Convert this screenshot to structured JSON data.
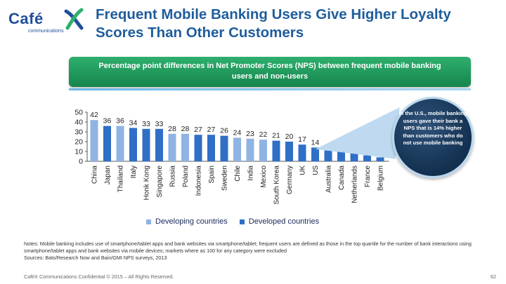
{
  "logo": {
    "text": "Café",
    "sub": "communications"
  },
  "title": "Frequent Mobile Banking Users Give Higher Loyalty Scores Than Other Customers",
  "banner": "Percentage point differences in Net Promoter Scores (NPS) between frequent mobile banking users and non-users",
  "callout": "In the U.S., mobile banking users gave their bank a NPS that is 14% higher than customers who do not use mobile banking",
  "legend": [
    "Developing countries",
    "Developed countries"
  ],
  "notes": "Notes: Mobile banking includes use of smartphone/tablet apps and bank websites via smartphone/tablet; frequent users are defined as those in the top quartile for the number of bank interactions using smartphone/tablet apps and bank websites via mobile devices; markets where as 100 for any category were excluded",
  "sources": "Sources: Bats/Research Now and Bain/GMI NPS surveys, 2013",
  "footer": "CaféX Communications Confidential © 2015 – All Rights Reserved.",
  "page_number": "62",
  "colors": {
    "developing": "#8fb4e3",
    "developed": "#2f6fc6",
    "title": "#1f5d9c",
    "banner": "#1f9a5d"
  },
  "chart_data": {
    "type": "bar",
    "categories": [
      "China",
      "Japan",
      "Thailand",
      "Italy",
      "Honk Kong",
      "Singapore",
      "Russia",
      "Poland",
      "Indonesia",
      "Spain",
      "Sweden",
      "Chile",
      "India",
      "Mexico",
      "South Korea",
      "Germany",
      "UK",
      "US",
      "Australia",
      "Canada",
      "Netherlands",
      "France",
      "Belgium"
    ],
    "values": [
      42,
      36,
      36,
      34,
      33,
      33,
      28,
      28,
      27,
      27,
      26,
      24,
      23,
      22,
      21,
      20,
      17,
      14,
      11,
      10,
      8,
      6,
      4
    ],
    "labels": [
      "42",
      "36",
      "36",
      "34",
      "33",
      "33",
      "28",
      "28",
      "27",
      "27",
      "26",
      "24",
      "23",
      "22",
      "21",
      "20",
      "17",
      "14",
      "",
      "",
      "",
      "",
      ""
    ],
    "groups": [
      "developing",
      "developed",
      "developing",
      "developed",
      "developed",
      "developed",
      "developing",
      "developing",
      "developed",
      "developed",
      "developed",
      "developing",
      "developing",
      "developing",
      "developed",
      "developed",
      "developed",
      "developed",
      "developed",
      "developed",
      "developed",
      "developed",
      "developed"
    ],
    "yticks": [
      0,
      10,
      20,
      30,
      40,
      50
    ],
    "ylim": [
      0,
      50
    ],
    "grid": false
  }
}
